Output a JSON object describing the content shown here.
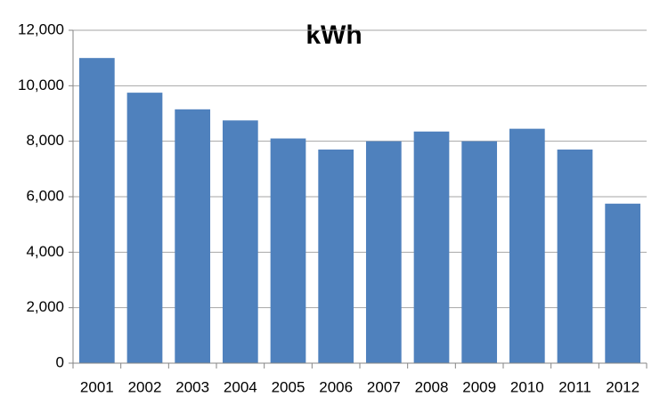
{
  "chart_data": {
    "type": "bar",
    "title": "kWh",
    "categories": [
      "2001",
      "2002",
      "2003",
      "2004",
      "2005",
      "2006",
      "2007",
      "2008",
      "2009",
      "2010",
      "2011",
      "2012"
    ],
    "values": [
      11000,
      9750,
      9150,
      8750,
      8100,
      7700,
      8000,
      8350,
      8000,
      8450,
      7700,
      5750
    ],
    "color": "#4f81bd",
    "ylim": [
      0,
      12000
    ],
    "yticks": [
      0,
      {
        "value": 2000,
        "label": "2,000"
      },
      {
        "value": 4000,
        "label": "4,000"
      },
      {
        "value": 6000,
        "label": "6,000"
      },
      {
        "value": 8000,
        "label": "8,000"
      },
      {
        "value": 10000,
        "label": "10,000"
      },
      {
        "value": 12000,
        "label": "12,000"
      }
    ],
    "grid": true
  }
}
